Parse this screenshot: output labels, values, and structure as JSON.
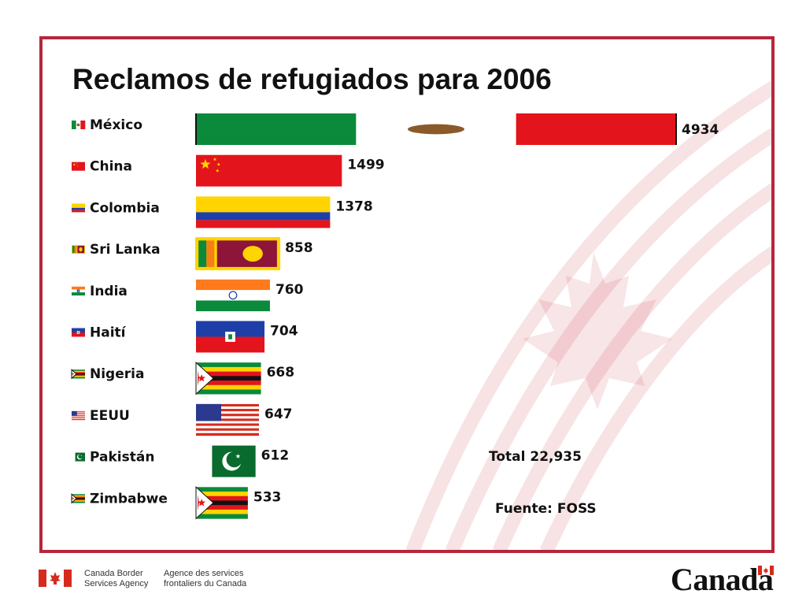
{
  "chart_data": {
    "type": "bar",
    "orientation": "horizontal",
    "title": "Reclamos de refugiados para 2006",
    "categories": [
      "México",
      "China",
      "Colombia",
      "Sri Lanka",
      "India",
      "Haití",
      "Nigeria",
      "EEUU",
      "Pakistán",
      "Zimbabwe"
    ],
    "values": [
      4934,
      1499,
      1378,
      858,
      760,
      704,
      668,
      647,
      612,
      533
    ],
    "data_labels": [
      "4934",
      "1499",
      "1378",
      "858",
      "760",
      "704",
      "668",
      "647",
      "612",
      "533"
    ],
    "flag_icons": [
      "mexico-flag-icon",
      "china-flag-icon",
      "colombia-flag-icon",
      "sri-lanka-flag-icon",
      "india-flag-icon",
      "haiti-flag-icon",
      "nigeria-flag-icon",
      "usa-flag-icon",
      "pakistan-flag-icon",
      "zimbabwe-flag-icon"
    ],
    "xlim": [
      0,
      4934
    ],
    "grid": false,
    "legend": "none"
  },
  "notes": {
    "total": "Total 22,935",
    "source": "Fuente: FOSS"
  },
  "footer": {
    "agency_en_line1": "Canada Border",
    "agency_en_line2": "Services Agency",
    "agency_fr_line1": "Agence des services",
    "agency_fr_line2": "frontaliers du Canada",
    "wordmark": "Canada"
  },
  "colors": {
    "frame": "#b5273a",
    "red": "#e3141b",
    "green": "#0a8a3a",
    "yellow": "#ffd400"
  }
}
